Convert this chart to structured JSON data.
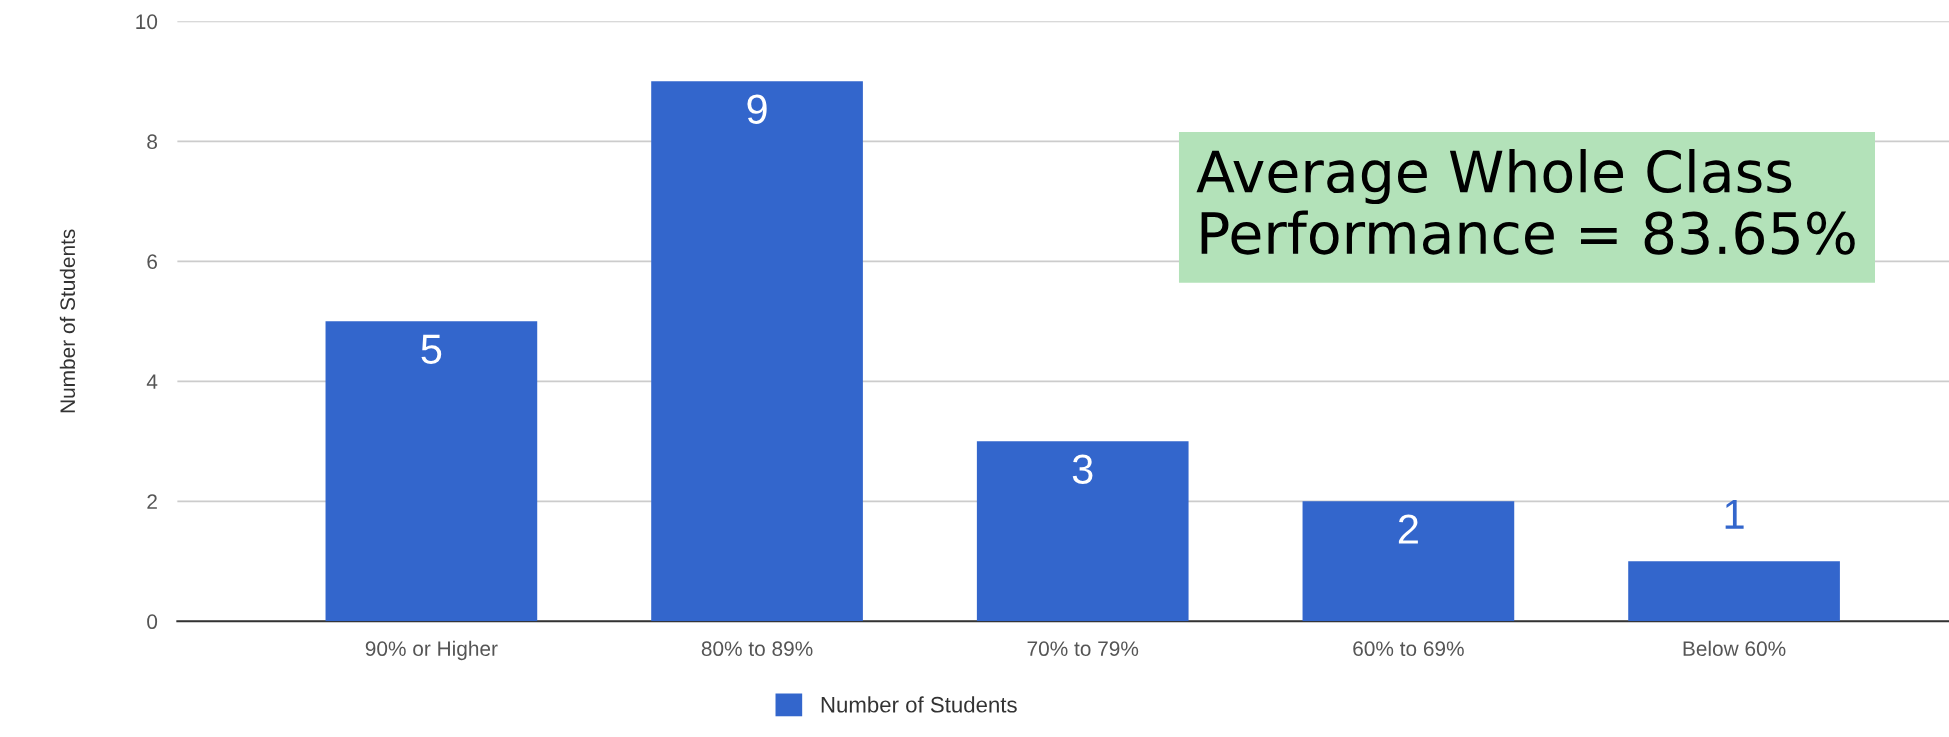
{
  "chart_data": {
    "type": "bar",
    "ylabel": "Number of Students",
    "categories": [
      "90% or Higher",
      "80% to 89%",
      "70% to 79%",
      "60% to 69%",
      "Below 60%"
    ],
    "series": [
      {
        "name": "Number of Students",
        "color": "#3366cc",
        "values": [
          5,
          9,
          3,
          2,
          1
        ]
      }
    ],
    "ylim": [
      0,
      10
    ],
    "yticks": [
      0,
      2,
      4,
      6,
      8,
      10
    ],
    "grid": "y",
    "legend": "bottom",
    "data_labels": true,
    "annotations": [
      "Average Whole Class\nPerformance = 83.65%"
    ]
  }
}
